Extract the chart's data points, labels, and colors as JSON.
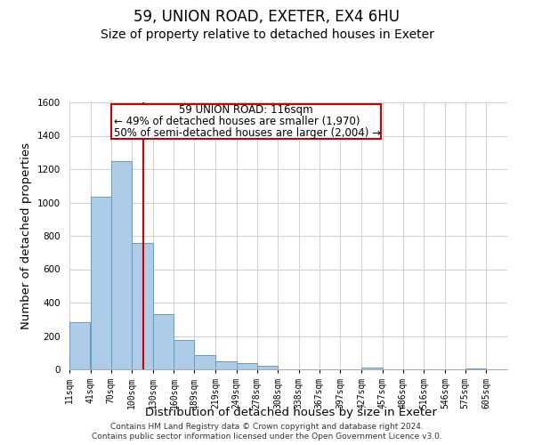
{
  "title_line1": "59, UNION ROAD, EXETER, EX4 6HU",
  "title_line2": "Size of property relative to detached houses in Exeter",
  "xlabel": "Distribution of detached houses by size in Exeter",
  "ylabel": "Number of detached properties",
  "bar_left_edges": [
    11,
    41,
    70,
    100,
    130,
    160,
    189,
    219,
    249,
    278,
    308,
    338,
    367,
    397,
    427,
    457,
    486,
    516,
    546,
    575
  ],
  "bar_heights": [
    285,
    1035,
    1250,
    760,
    330,
    175,
    85,
    50,
    38,
    20,
    0,
    0,
    0,
    0,
    10,
    0,
    0,
    0,
    0,
    5
  ],
  "bar_widths": [
    29,
    29,
    30,
    30,
    30,
    29,
    30,
    30,
    29,
    30,
    30,
    29,
    30,
    30,
    30,
    29,
    30,
    30,
    29,
    30
  ],
  "tick_labels": [
    "11sqm",
    "41sqm",
    "70sqm",
    "100sqm",
    "130sqm",
    "160sqm",
    "189sqm",
    "219sqm",
    "249sqm",
    "278sqm",
    "308sqm",
    "338sqm",
    "367sqm",
    "397sqm",
    "427sqm",
    "457sqm",
    "486sqm",
    "516sqm",
    "546sqm",
    "575sqm",
    "605sqm"
  ],
  "tick_positions": [
    11,
    41,
    70,
    100,
    130,
    160,
    189,
    219,
    249,
    278,
    308,
    338,
    367,
    397,
    427,
    457,
    486,
    516,
    546,
    575,
    605
  ],
  "ylim": [
    0,
    1600
  ],
  "yticks": [
    0,
    200,
    400,
    600,
    800,
    1000,
    1200,
    1400,
    1600
  ],
  "bar_color": "#aecce8",
  "bar_edge_color": "#5a9ec9",
  "vertical_line_x": 116,
  "vertical_line_color": "#cc0000",
  "annotation_line1": "59 UNION ROAD: 116sqm",
  "annotation_line2": "← 49% of detached houses are smaller (1,970)",
  "annotation_line3": "50% of semi-detached houses are larger (2,004) →",
  "footnote_line1": "Contains HM Land Registry data © Crown copyright and database right 2024.",
  "footnote_line2": "Contains public sector information licensed under the Open Government Licence v3.0.",
  "background_color": "#ffffff",
  "grid_color": "#d0d0d0",
  "title_fontsize": 12,
  "subtitle_fontsize": 10,
  "axis_label_fontsize": 9.5,
  "tick_fontsize": 7,
  "annotation_fontsize": 8.5,
  "footnote_fontsize": 6.5
}
